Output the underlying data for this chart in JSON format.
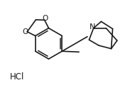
{
  "background_color": "#ffffff",
  "line_color": "#1a1a1a",
  "line_width": 1.2,
  "text_color": "#1a1a1a",
  "hcl_label": "HCl",
  "n_label": "N",
  "o_label1": "O",
  "o_label2": "O",
  "font_size_atom": 7.5,
  "font_size_hcl": 8.5
}
